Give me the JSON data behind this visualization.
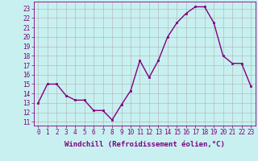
{
  "x": [
    0,
    1,
    2,
    3,
    4,
    5,
    6,
    7,
    8,
    9,
    10,
    11,
    12,
    13,
    14,
    15,
    16,
    17,
    18,
    19,
    20,
    21,
    22,
    23
  ],
  "y": [
    13.0,
    15.0,
    15.0,
    13.8,
    13.3,
    13.3,
    12.2,
    12.2,
    11.2,
    12.8,
    14.3,
    17.5,
    15.7,
    17.5,
    20.0,
    21.5,
    22.5,
    23.2,
    23.2,
    21.5,
    18.0,
    17.2,
    17.2,
    14.8
  ],
  "line_color": "#800080",
  "marker": "s",
  "marker_size": 2,
  "bg_color": "#c8f0f0",
  "grid_color": "#b0b0b0",
  "xlabel": "Windchill (Refroidissement éolien,°C)",
  "xlabel_fontsize": 6.5,
  "ytick_values": [
    11,
    12,
    13,
    14,
    15,
    16,
    17,
    18,
    19,
    20,
    21,
    22,
    23
  ],
  "ylim": [
    10.6,
    23.75
  ],
  "xlim": [
    -0.5,
    23.5
  ],
  "xtick_labels": [
    "0",
    "1",
    "2",
    "3",
    "4",
    "5",
    "6",
    "7",
    "8",
    "9",
    "10",
    "11",
    "12",
    "13",
    "14",
    "15",
    "16",
    "17",
    "18",
    "19",
    "20",
    "21",
    "22",
    "23"
  ],
  "tick_fontsize": 5.5,
  "line_width": 1.0
}
